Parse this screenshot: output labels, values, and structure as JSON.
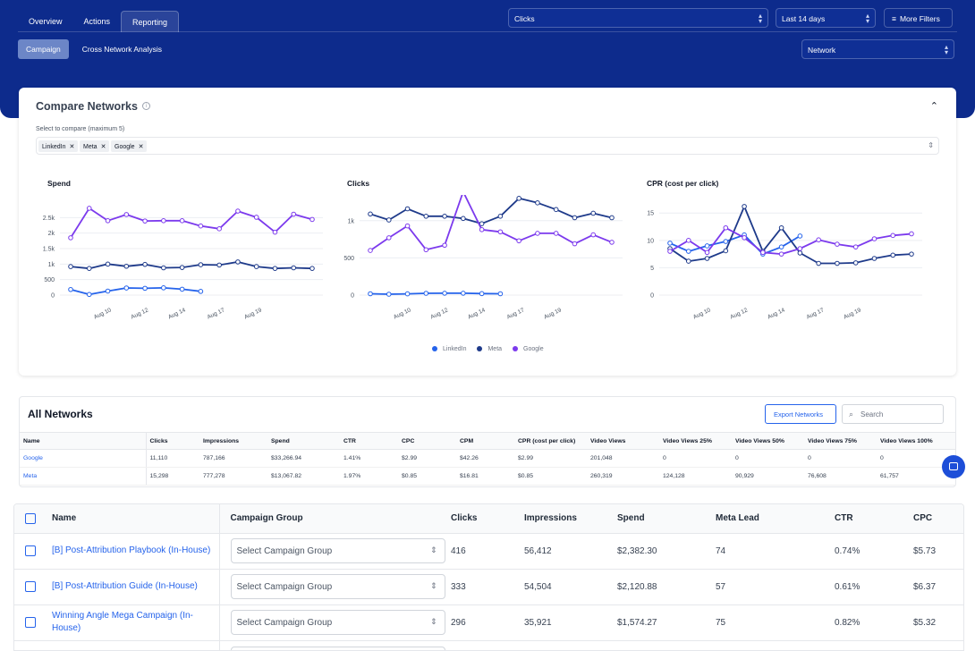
{
  "tabs": [
    {
      "label": "Overview"
    },
    {
      "label": "Actions"
    },
    {
      "label": "Reporting"
    }
  ],
  "subtabs": [
    {
      "label": "Campaign"
    },
    {
      "label": "Cross Network Analysis"
    }
  ],
  "filters": {
    "metric": "Clicks",
    "date_range": "Last 14 days",
    "more_filters": "More Filters",
    "group_by": "Network"
  },
  "compare": {
    "title": "Compare Networks",
    "select_label": "Select to compare (maximum 5)",
    "chips": [
      "LinkedIn",
      "Meta",
      "Google"
    ]
  },
  "colors": {
    "linkedin": "#2563eb",
    "meta": "#1e3a8a",
    "google": "#7c3aed",
    "brand_band": "#0d2b8c"
  },
  "chart_data": [
    {
      "type": "line",
      "title": "Spend",
      "x_ticks": [
        "Aug 10",
        "Aug 12",
        "Aug 14",
        "Aug 17",
        "Aug 19"
      ],
      "ylim": [
        0,
        3000
      ],
      "y_ticks": [
        "0",
        "500",
        "1k",
        "1.5k",
        "2k",
        "2.5k"
      ],
      "series": [
        {
          "name": "LinkedIn",
          "x": [
            1,
            2,
            3,
            4,
            5,
            6,
            7,
            8
          ],
          "values": [
            180,
            20,
            130,
            230,
            220,
            235,
            190,
            120
          ]
        },
        {
          "name": "Meta",
          "x": [
            1,
            2,
            3,
            4,
            5,
            6,
            7,
            8,
            9,
            10,
            11,
            12,
            13,
            14
          ],
          "values": [
            920,
            860,
            1000,
            930,
            990,
            880,
            890,
            980,
            970,
            1070,
            920,
            860,
            880,
            860
          ]
        },
        {
          "name": "Google",
          "x": [
            1,
            2,
            3,
            4,
            5,
            6,
            7,
            8,
            9,
            10,
            11,
            12,
            13,
            14
          ],
          "values": [
            1850,
            2800,
            2400,
            2600,
            2390,
            2400,
            2400,
            2230,
            2140,
            2710,
            2510,
            2030,
            2610,
            2440
          ]
        }
      ]
    },
    {
      "type": "line",
      "title": "Clicks",
      "x_ticks": [
        "Aug 10",
        "Aug 12",
        "Aug 14",
        "Aug 17",
        "Aug 19"
      ],
      "ylim": [
        0,
        1250
      ],
      "y_ticks": [
        "0",
        "500",
        "1k"
      ],
      "series": [
        {
          "name": "LinkedIn",
          "x": [
            1,
            2,
            3,
            4,
            5,
            6,
            7,
            8
          ],
          "values": [
            18,
            12,
            17,
            24,
            25,
            25,
            20,
            18
          ]
        },
        {
          "name": "Meta",
          "x": [
            1,
            2,
            3,
            4,
            5,
            6,
            7,
            8,
            9,
            10,
            11,
            12,
            13,
            14
          ],
          "values": [
            1090,
            1010,
            1160,
            1060,
            1060,
            1030,
            960,
            1060,
            1300,
            1240,
            1150,
            1040,
            1100,
            1040
          ]
        },
        {
          "name": "Google",
          "x": [
            1,
            2,
            3,
            4,
            5,
            6,
            7,
            8,
            9,
            10,
            11,
            12,
            13,
            14
          ],
          "values": [
            600,
            770,
            930,
            610,
            670,
            1390,
            880,
            850,
            730,
            830,
            830,
            690,
            810,
            710
          ]
        }
      ]
    },
    {
      "type": "line",
      "title": "CPR (cost per click)",
      "x_ticks": [
        "Aug 10",
        "Aug 12",
        "Aug 14",
        "Aug 17",
        "Aug 19"
      ],
      "ylim": [
        0,
        17
      ],
      "y_ticks": [
        "0",
        "5",
        "10",
        "15"
      ],
      "series": [
        {
          "name": "LinkedIn",
          "x": [
            1,
            2,
            3,
            4,
            5,
            6,
            7,
            8
          ],
          "values": [
            9.5,
            8,
            9,
            9.8,
            11,
            7.5,
            8.8,
            10.8
          ]
        },
        {
          "name": "Meta",
          "x": [
            1,
            2,
            3,
            4,
            5,
            6,
            7,
            8,
            9,
            10,
            11,
            12,
            13,
            14
          ],
          "values": [
            8.5,
            6.2,
            6.7,
            8.1,
            16.2,
            8,
            12.3,
            7.7,
            5.8,
            5.8,
            5.9,
            6.7,
            7.3,
            7.5
          ]
        },
        {
          "name": "Google",
          "x": [
            1,
            2,
            3,
            4,
            5,
            6,
            7,
            8,
            9,
            10,
            11,
            12,
            13,
            14
          ],
          "values": [
            8,
            10,
            7.8,
            12.3,
            10.5,
            7.8,
            7.5,
            8.5,
            10.1,
            9.3,
            8.8,
            10.3,
            10.9,
            11.2
          ]
        }
      ]
    }
  ],
  "all_networks": {
    "title": "All Networks",
    "export_label": "Export Networks",
    "search_placeholder": "Search",
    "columns": [
      "Name",
      "Clicks",
      "Impressions",
      "Spend",
      "CTR",
      "CPC",
      "CPM",
      "CPR (cost per click)",
      "Video Views",
      "Video Views 25%",
      "Video Views 50%",
      "Video Views 75%",
      "Video Views 100%"
    ],
    "rows": [
      [
        "Google",
        "11,110",
        "787,166",
        "$33,266.94",
        "1.41%",
        "$2.99",
        "$42.26",
        "$2.99",
        "201,048",
        "0",
        "0",
        "0",
        "0"
      ],
      [
        "Meta",
        "15,298",
        "777,278",
        "$13,067.82",
        "1.97%",
        "$0.85",
        "$16.81",
        "$0.85",
        "260,319",
        "124,128",
        "90,929",
        "76,608",
        "61,757"
      ]
    ]
  },
  "campaigns": {
    "columns": [
      "Name",
      "Campaign Group",
      "Clicks",
      "Impressions",
      "Spend",
      "Meta Lead",
      "CTR",
      "CPC"
    ],
    "select_placeholder": "Select Campaign Group",
    "rows": [
      {
        "name": "[B] Post-Attribution Playbook (In-House)",
        "clicks": "416",
        "impressions": "56,412",
        "spend": "$2,382.30",
        "lead": "74",
        "ctr": "0.74%",
        "cpc": "$5.73"
      },
      {
        "name": "[B] Post-Attribution Guide (In-House)",
        "clicks": "333",
        "impressions": "54,504",
        "spend": "$2,120.88",
        "lead": "57",
        "ctr": "0.61%",
        "cpc": "$6.37"
      },
      {
        "name": "Winning Angle Mega Campaign (In-House)",
        "clicks": "296",
        "impressions": "35,921",
        "spend": "$1,574.27",
        "lead": "75",
        "ctr": "0.82%",
        "cpc": "$5.32"
      }
    ]
  }
}
